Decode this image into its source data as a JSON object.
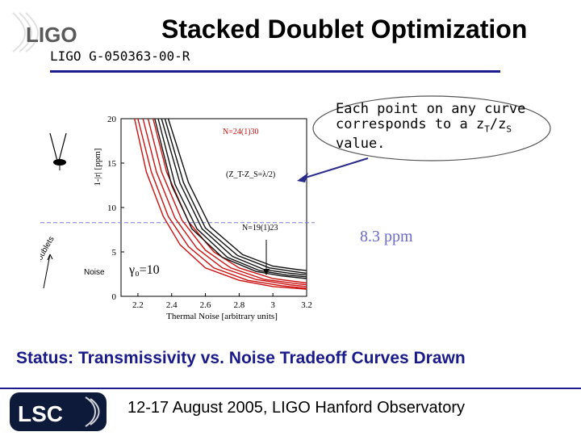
{
  "slide": {
    "title": "Stacked Doublet Optimization",
    "doc_id": "LIGO G-050363-00-R",
    "status": "Status: Transmissivity vs. Noise Tradeoff Curves Drawn",
    "footer": "12-17 August 2005, LIGO Hanford Observatory",
    "logo_top": "LIGO",
    "logo_bottom": "LSC"
  },
  "callout": {
    "line1": "Each point on any curve",
    "line2_pre": "corresponds to a z",
    "line2_sub1": "T",
    "line2_mid": "/z",
    "line2_sub2": "S",
    "line3": "value."
  },
  "annotations": {
    "ppm_label": "8.3 ppm",
    "noise_label": "Noise",
    "gamma_label": "γ₀=10",
    "doublets_label": "# doublets"
  },
  "chart_data": {
    "type": "line",
    "xlabel": "Thermal Noise [arbitrary units]",
    "ylabel": "1-|r| [ppm]",
    "xlim": [
      2.1,
      3.2
    ],
    "ylim": [
      0,
      20
    ],
    "x_ticks": [
      "2.2",
      "2.4",
      "2.6",
      "2.8",
      "3",
      "3.2"
    ],
    "y_ticks": [
      "0",
      "5",
      "10",
      "15",
      "20"
    ],
    "annotations": [
      "N=24(1)30",
      "(Z_T-Z_S=λ/2)",
      "N=19(1)23"
    ],
    "threshold_ppm": 8.3,
    "colors": {
      "red_family": "#cc1010",
      "black_family": "#111111",
      "threshold": "#7a7ad0"
    },
    "series": [
      {
        "color": "red",
        "x": [
          2.18,
          2.25,
          2.35,
          2.45,
          2.6,
          2.8,
          3.0,
          3.2
        ],
        "y": [
          20,
          14,
          9.0,
          5.8,
          3.2,
          1.8,
          1.1,
          0.8
        ]
      },
      {
        "color": "red",
        "x": [
          2.2,
          2.28,
          2.38,
          2.5,
          2.65,
          2.85,
          3.05,
          3.2
        ],
        "y": [
          20,
          14,
          9.0,
          5.6,
          3.2,
          1.8,
          1.2,
          0.9
        ]
      },
      {
        "color": "red",
        "x": [
          2.23,
          2.31,
          2.42,
          2.55,
          2.7,
          2.9,
          3.1,
          3.2
        ],
        "y": [
          20,
          14,
          8.8,
          5.4,
          3.2,
          1.9,
          1.3,
          1.1
        ]
      },
      {
        "color": "red",
        "x": [
          2.26,
          2.34,
          2.46,
          2.6,
          2.75,
          2.95,
          3.15,
          3.2
        ],
        "y": [
          20,
          14,
          8.6,
          5.2,
          3.2,
          1.9,
          1.4,
          1.3
        ]
      },
      {
        "color": "red",
        "x": [
          2.29,
          2.37,
          2.5,
          2.65,
          2.8,
          3.0,
          3.2
        ],
        "y": [
          20,
          14,
          8.4,
          5.0,
          3.2,
          2.0,
          1.5
        ]
      },
      {
        "color": "black",
        "x": [
          2.3,
          2.4,
          2.52,
          2.7,
          2.9,
          3.05,
          3.2
        ],
        "y": [
          20,
          12.5,
          7.6,
          4.4,
          2.8,
          2.3,
          2.0
        ]
      },
      {
        "color": "black",
        "x": [
          2.32,
          2.42,
          2.55,
          2.73,
          2.92,
          3.08,
          3.2
        ],
        "y": [
          20,
          12.6,
          7.6,
          4.4,
          2.9,
          2.4,
          2.2
        ]
      },
      {
        "color": "black",
        "x": [
          2.34,
          2.45,
          2.58,
          2.76,
          2.95,
          3.1,
          3.2
        ],
        "y": [
          20,
          12.7,
          7.6,
          4.5,
          3.0,
          2.6,
          2.4
        ]
      },
      {
        "color": "black",
        "x": [
          2.36,
          2.47,
          2.6,
          2.79,
          2.98,
          3.12,
          3.2
        ],
        "y": [
          20,
          12.8,
          7.7,
          4.6,
          3.2,
          2.8,
          2.6
        ]
      },
      {
        "color": "black",
        "x": [
          2.38,
          2.5,
          2.63,
          2.82,
          3.0,
          3.15,
          3.2
        ],
        "y": [
          20,
          12.8,
          7.8,
          4.7,
          3.4,
          3.0,
          2.9
        ]
      }
    ]
  }
}
